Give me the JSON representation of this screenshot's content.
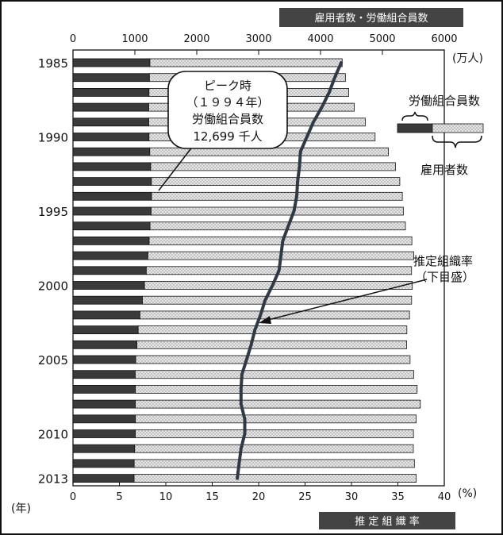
{
  "chart_data": {
    "type": "bar",
    "orientation": "horizontal",
    "top_axis_title": "雇用者数・労働組合員数",
    "top_axis_unit": "(万人)",
    "top_axis_ticks": [
      "0",
      "1000",
      "2000",
      "3000",
      "4000",
      "5000",
      "6000"
    ],
    "top_axis_range": [
      0,
      6000
    ],
    "bottom_axis_title": "推 定 組 織 率",
    "bottom_axis_unit": "(%)",
    "bottom_axis_ticks": [
      "0",
      "5",
      "10",
      "15",
      "20",
      "25",
      "30",
      "35",
      "40"
    ],
    "bottom_axis_range": [
      0,
      40
    ],
    "y_axis_unit": "(年)",
    "y_tick_labels": [
      "1985",
      "1990",
      "1995",
      "2000",
      "2005",
      "2010",
      "2013"
    ],
    "years": [
      1985,
      1986,
      1987,
      1988,
      1989,
      1990,
      1991,
      1992,
      1993,
      1994,
      1995,
      1996,
      1997,
      1998,
      1999,
      2000,
      2001,
      2002,
      2003,
      2004,
      2005,
      2006,
      2007,
      2008,
      2009,
      2010,
      2011,
      2012,
      2013
    ],
    "series": [
      {
        "name": "労働組合員数",
        "values": [
          1242,
          1234,
          1227,
          1223,
          1223,
          1227,
          1240,
          1254,
          1266,
          1270,
          1261,
          1245,
          1229,
          1209,
          1183,
          1154,
          1121,
          1080,
          1053,
          1031,
          1014,
          1004,
          1008,
          1007,
          1008,
          1005,
          996,
          989,
          987
        ]
      },
      {
        "name": "雇用者数",
        "values": [
          4350,
          4402,
          4456,
          4545,
          4723,
          4882,
          5097,
          5211,
          5281,
          5322,
          5339,
          5372,
          5476,
          5506,
          5471,
          5483,
          5472,
          5438,
          5395,
          5391,
          5447,
          5505,
          5561,
          5613,
          5546,
          5502,
          5500,
          5517,
          5546
        ]
      },
      {
        "name": "推定組織率",
        "values": [
          28.9,
          28.2,
          27.6,
          26.8,
          25.9,
          25.2,
          24.5,
          24.4,
          24.2,
          24.1,
          23.8,
          23.2,
          22.6,
          22.4,
          22.2,
          21.5,
          20.7,
          20.2,
          19.6,
          19.2,
          18.7,
          18.2,
          18.1,
          18.1,
          18.5,
          18.5,
          18.1,
          17.9,
          17.7
        ]
      }
    ],
    "legend": {
      "union_label": "労働組合員数",
      "employee_label": "雇用者数"
    },
    "annotations": {
      "peak_lines": [
        "ピーク時",
        "（１９９４年）",
        "労働組合員数",
        "12,699 千人"
      ],
      "rate_lines": [
        "推定組織率",
        "（下目盛）"
      ]
    }
  },
  "colors": {
    "union_fill": "#3a3a3a",
    "employee_fill": "#e3e3e3",
    "rate_line": "#2f3a44",
    "header_bg": "#444444",
    "frame": "#111111"
  }
}
